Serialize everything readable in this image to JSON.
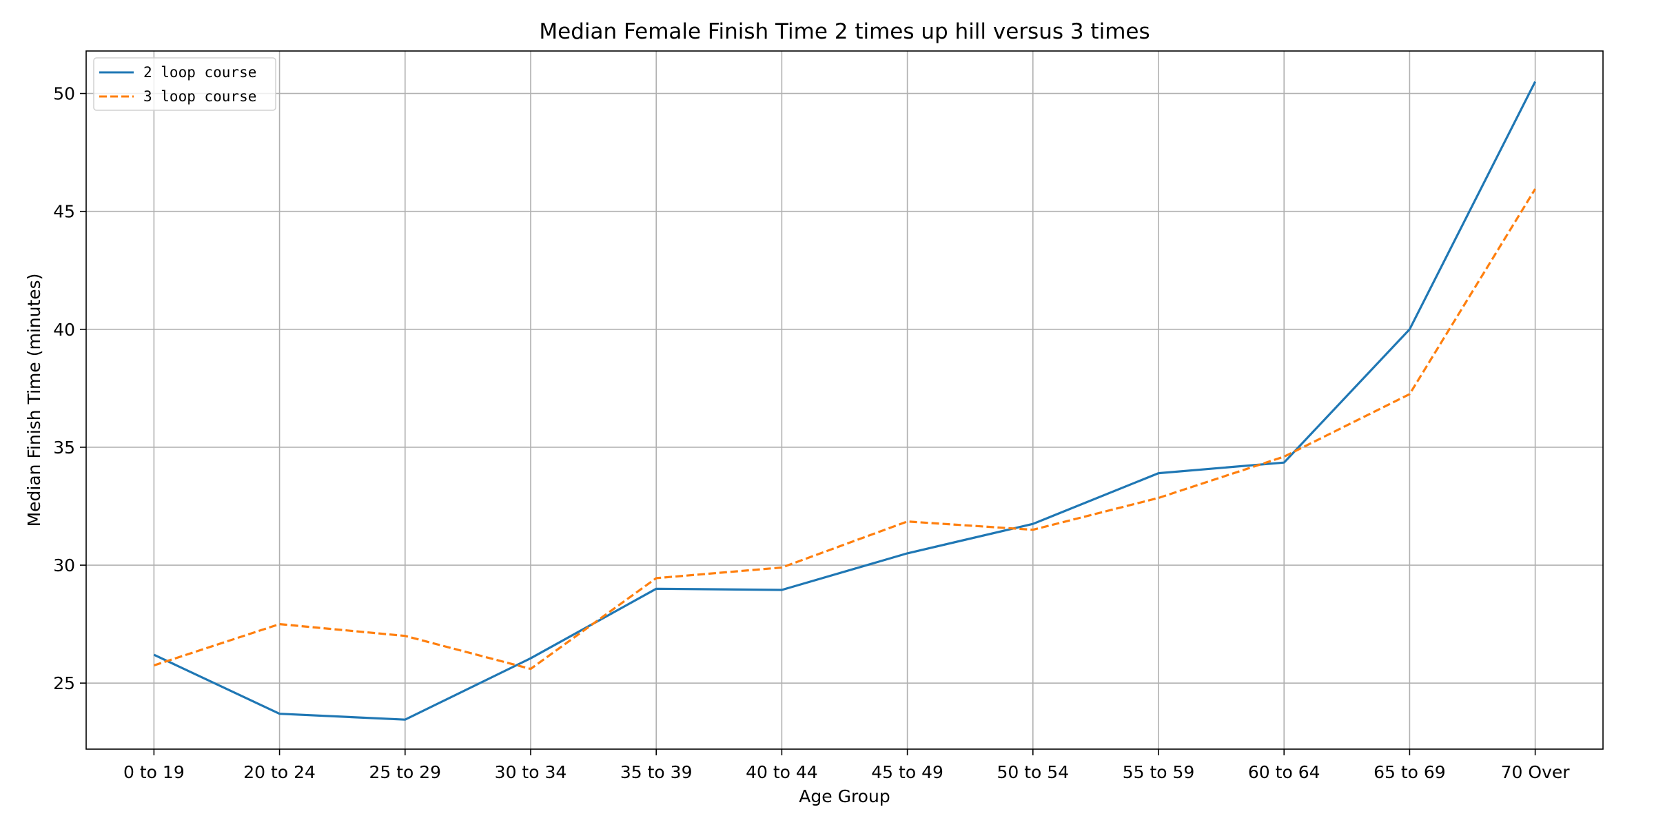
{
  "chart_data": {
    "type": "line",
    "title": "Median Female Finish Time 2 times up hill versus 3 times",
    "xlabel": "Age Group",
    "ylabel": "Median Finish Time (minutes)",
    "categories": [
      "0 to 19",
      "20 to 24",
      "25 to 29",
      "30 to 34",
      "35 to 39",
      "40 to 44",
      "45 to 49",
      "50 to 54",
      "55 to 59",
      "60 to 64",
      "65 to 69",
      "70 Over"
    ],
    "ylim": [
      22.2,
      51.8
    ],
    "yticks": [
      25,
      30,
      35,
      40,
      45,
      50
    ],
    "grid": true,
    "legend_position": "top-left",
    "series": [
      {
        "name": "2 loop course",
        "color": "#1f77b4",
        "dash": "solid",
        "values": [
          26.2,
          23.7,
          23.45,
          26.05,
          29.0,
          28.95,
          30.5,
          31.75,
          33.9,
          34.35,
          40.0,
          50.5
        ]
      },
      {
        "name": "3 loop course",
        "color": "#ff7f0e",
        "dash": "dashed",
        "values": [
          25.75,
          27.5,
          27.0,
          25.6,
          29.45,
          29.9,
          31.85,
          31.5,
          32.85,
          34.6,
          37.25,
          45.95
        ]
      }
    ]
  }
}
